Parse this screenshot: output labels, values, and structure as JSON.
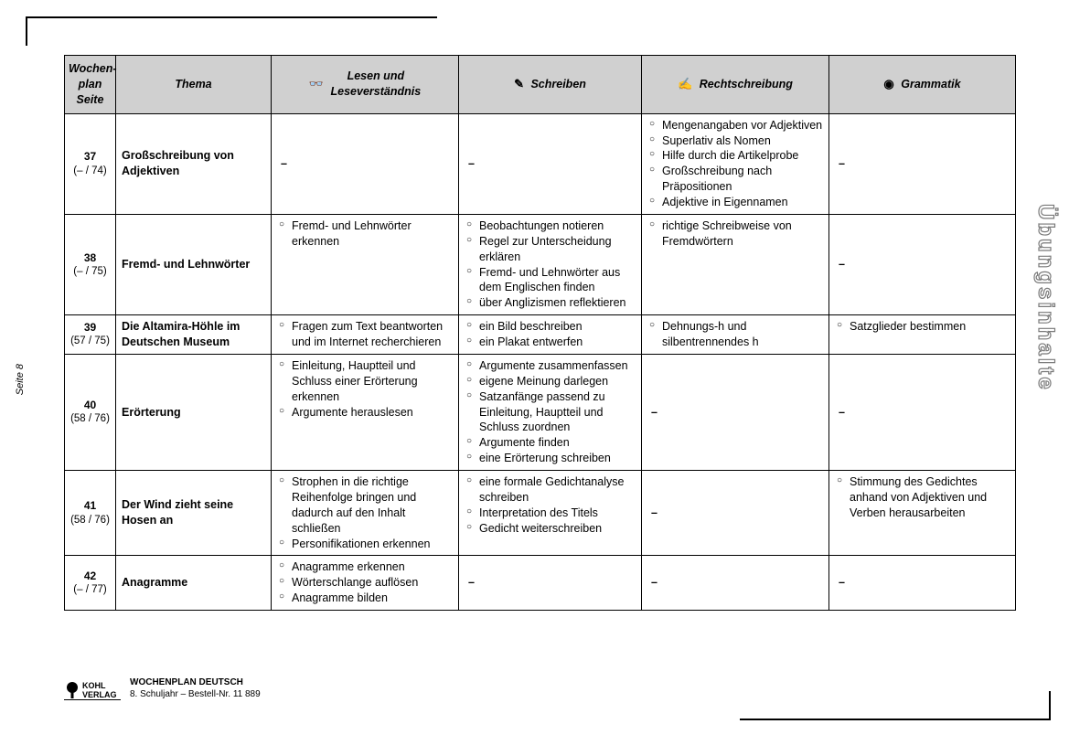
{
  "sideLabel": "Übungsinhalte",
  "sidePage": "Seite 8",
  "footer": {
    "publisher": "KOHL VERLAG",
    "line1": "WOCHENPLAN DEUTSCH",
    "line2": "8. Schuljahr   –   Bestell-Nr. 11 889"
  },
  "header": {
    "col1a": "Wochen-",
    "col1b": "plan",
    "col1c": "Seite",
    "col2": "Thema",
    "col3a": "Lesen und",
    "col3b": "Leseverständnis",
    "col4": "Schreiben",
    "col5": "Rechtschreibung",
    "col6": "Grammatik",
    "icon3": "👓",
    "icon4": "✎",
    "icon5": "✍",
    "icon6": "◉"
  },
  "rows": [
    {
      "week": "37",
      "pages": "(– / 74)",
      "thema": "Großschreibung von Adjektiven",
      "lesen": null,
      "schreiben": null,
      "recht": [
        "Mengenangaben vor Adjektiven",
        "Superlativ als Nomen",
        "Hilfe durch die Artikelprobe",
        "Großschreibung nach Präpositionen",
        "Adjektive in Eigennamen"
      ],
      "gram": null
    },
    {
      "week": "38",
      "pages": "(– / 75)",
      "thema": "Fremd- und Lehnwörter",
      "lesen": [
        "Fremd- und Lehnwörter erkennen"
      ],
      "schreiben": [
        "Beobachtungen notieren",
        "Regel zur Unterscheidung erklären",
        "Fremd- und Lehnwörter aus dem Englischen finden",
        "über Anglizismen reflek­tieren"
      ],
      "recht": [
        "richtige Schreibweise von Fremdwörtern"
      ],
      "gram": null
    },
    {
      "week": "39",
      "pages": "(57 / 75)",
      "thema": "Die Altamira-Höhle im Deutschen Museum",
      "lesen": [
        "Fragen zum Text beantworten und im Internet recherchieren"
      ],
      "schreiben": [
        "ein Bild beschreiben",
        "ein Plakat entwerfen"
      ],
      "recht": [
        "Dehnungs-h und silbentrennendes h"
      ],
      "gram": [
        "Satzglieder bestimmen"
      ]
    },
    {
      "week": "40",
      "pages": "(58 / 76)",
      "thema": "Erörterung",
      "lesen": [
        "Einleitung, Hauptteil und Schluss einer Erörterung erkennen",
        "Argumente herauslesen"
      ],
      "schreiben": [
        "Argumente zusammen­fassen",
        "eigene Meinung darlegen",
        "Satzanfänge passend zu Einleitung, Hauptteil und Schluss zuordnen",
        "Argumente finden",
        "eine Erörterung schreiben"
      ],
      "recht": null,
      "gram": null
    },
    {
      "week": "41",
      "pages": "(58 / 76)",
      "thema": "Der Wind zieht seine Hosen an",
      "lesen": [
        "Strophen in die richtige Reihenfolge bringen und dadurch auf den Inhalt schließen",
        "Personifikationen erkennen"
      ],
      "schreiben": [
        "eine formale Gedicht­analyse schreiben",
        "Interpretation des Titels",
        "Gedicht weiterschreiben"
      ],
      "recht": null,
      "gram": [
        "Stimmung des Gedichtes anhand von Adjektiven und Verben herausarbeiten"
      ]
    },
    {
      "week": "42",
      "pages": "(– / 77)",
      "thema": "Anagramme",
      "lesen": [
        "Anagramme erkennen",
        "Wörterschlange auflösen",
        "Anagramme bilden"
      ],
      "schreiben": null,
      "recht": null,
      "gram": null
    }
  ]
}
